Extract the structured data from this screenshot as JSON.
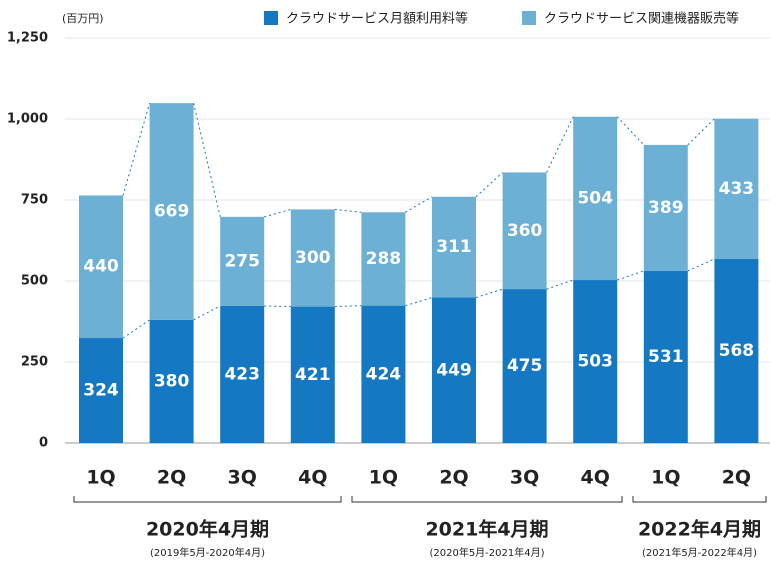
{
  "chart_data": {
    "type": "stacked_bar",
    "unit": "(百万円)",
    "categories": [
      "1Q",
      "2Q",
      "3Q",
      "4Q",
      "1Q",
      "2Q",
      "3Q",
      "4Q",
      "1Q",
      "2Q"
    ],
    "series": [
      {
        "name": "クラウドサービス月額利用料等",
        "color": "#1479c2",
        "values": [
          324,
          380,
          423,
          421,
          424,
          449,
          475,
          503,
          531,
          568
        ]
      },
      {
        "name": "クラウドサービス関連機器販売等",
        "color": "#6cb0d6",
        "values": [
          440,
          669,
          275,
          300,
          288,
          311,
          360,
          504,
          389,
          433
        ]
      }
    ],
    "ylim": [
      0,
      1250
    ],
    "yticks": [
      0,
      250,
      500,
      750,
      {
        "value": 1000,
        "label": "1,000"
      },
      {
        "value": 1250,
        "label": "1,250"
      }
    ],
    "grid": true,
    "groups": [
      {
        "label": "2020年4月期",
        "sub": "(2019年5月-2020年4月)"
      },
      {
        "label": "2021年4月期",
        "sub": "(2020年5月-2021年4月)"
      },
      {
        "label": "2022年4月期",
        "sub": "(2021年5月-2022年4月)"
      }
    ]
  }
}
